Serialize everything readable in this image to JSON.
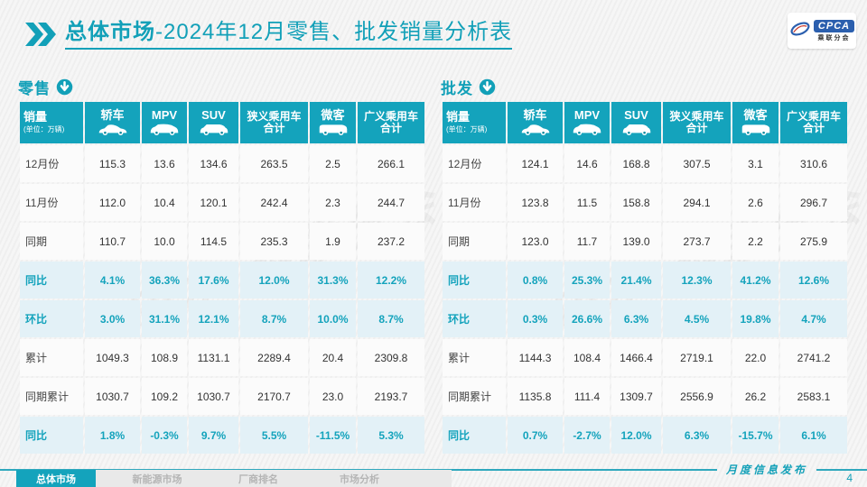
{
  "header": {
    "title_prefix": "总体市场",
    "title_rest": "-2024年12月零售、批发销量分析表",
    "logo": {
      "text": "CPCA",
      "subtext": "乘联分会"
    }
  },
  "columns": [
    {
      "label": "销量",
      "sub": "(单位：万辆)"
    },
    {
      "label": "轿车",
      "icon": "sedan-icon"
    },
    {
      "label": "MPV",
      "icon": "mpv-icon"
    },
    {
      "label": "SUV",
      "icon": "suv-icon"
    },
    {
      "label": "狭义乘用车",
      "label2": "合计"
    },
    {
      "label": "微客",
      "icon": "van-icon"
    },
    {
      "label": "广义乘用车",
      "label2": "合计"
    }
  ],
  "tables": [
    {
      "id": "retail",
      "label": "零售",
      "rows": [
        {
          "label": "12月份",
          "highlight": false,
          "values": [
            "115.3",
            "13.6",
            "134.6",
            "263.5",
            "2.5",
            "266.1"
          ]
        },
        {
          "label": "11月份",
          "highlight": false,
          "values": [
            "112.0",
            "10.4",
            "120.1",
            "242.4",
            "2.3",
            "244.7"
          ]
        },
        {
          "label": "同期",
          "highlight": false,
          "values": [
            "110.7",
            "10.0",
            "114.5",
            "235.3",
            "1.9",
            "237.2"
          ]
        },
        {
          "label": "同比",
          "highlight": true,
          "values": [
            "4.1%",
            "36.3%",
            "17.6%",
            "12.0%",
            "31.3%",
            "12.2%"
          ]
        },
        {
          "label": "环比",
          "highlight": true,
          "values": [
            "3.0%",
            "31.1%",
            "12.1%",
            "8.7%",
            "10.0%",
            "8.7%"
          ]
        },
        {
          "label": "累计",
          "highlight": false,
          "values": [
            "1049.3",
            "108.9",
            "1131.1",
            "2289.4",
            "20.4",
            "2309.8"
          ]
        },
        {
          "label": "同期累计",
          "highlight": false,
          "values": [
            "1030.7",
            "109.2",
            "1030.7",
            "2170.7",
            "23.0",
            "2193.7"
          ]
        },
        {
          "label": "同比",
          "highlight": true,
          "values": [
            "1.8%",
            "-0.3%",
            "9.7%",
            "5.5%",
            "-11.5%",
            "5.3%"
          ]
        }
      ]
    },
    {
      "id": "wholesale",
      "label": "批发",
      "rows": [
        {
          "label": "12月份",
          "highlight": false,
          "values": [
            "124.1",
            "14.6",
            "168.8",
            "307.5",
            "3.1",
            "310.6"
          ]
        },
        {
          "label": "11月份",
          "highlight": false,
          "values": [
            "123.8",
            "11.5",
            "158.8",
            "294.1",
            "2.6",
            "296.7"
          ]
        },
        {
          "label": "同期",
          "highlight": false,
          "values": [
            "123.0",
            "11.7",
            "139.0",
            "273.7",
            "2.2",
            "275.9"
          ]
        },
        {
          "label": "同比",
          "highlight": true,
          "values": [
            "0.8%",
            "25.3%",
            "21.4%",
            "12.3%",
            "41.2%",
            "12.6%"
          ]
        },
        {
          "label": "环比",
          "highlight": true,
          "values": [
            "0.3%",
            "26.6%",
            "6.3%",
            "4.5%",
            "19.8%",
            "4.7%"
          ]
        },
        {
          "label": "累计",
          "highlight": false,
          "values": [
            "1144.3",
            "108.4",
            "1466.4",
            "2719.1",
            "22.0",
            "2741.2"
          ]
        },
        {
          "label": "同期累计",
          "highlight": false,
          "values": [
            "1135.8",
            "111.4",
            "1309.7",
            "2556.9",
            "26.2",
            "2583.1"
          ]
        },
        {
          "label": "同比",
          "highlight": true,
          "values": [
            "0.7%",
            "-2.7%",
            "12.0%",
            "6.3%",
            "-15.7%",
            "6.1%"
          ]
        }
      ]
    }
  ],
  "watermark": "CPCA 乘联分会",
  "footer": {
    "tabs": [
      {
        "label": "总体市场",
        "active": true
      },
      {
        "label": "新能源市场",
        "active": false
      },
      {
        "label": "厂商排名",
        "active": false
      },
      {
        "label": "市场分析",
        "active": false
      }
    ],
    "publish_label": "月度信息发布",
    "page_number": "4"
  },
  "colors": {
    "accent": "#12a0b8",
    "header_fill": "#14a3bc",
    "highlight_row": "#e3f1f7"
  }
}
